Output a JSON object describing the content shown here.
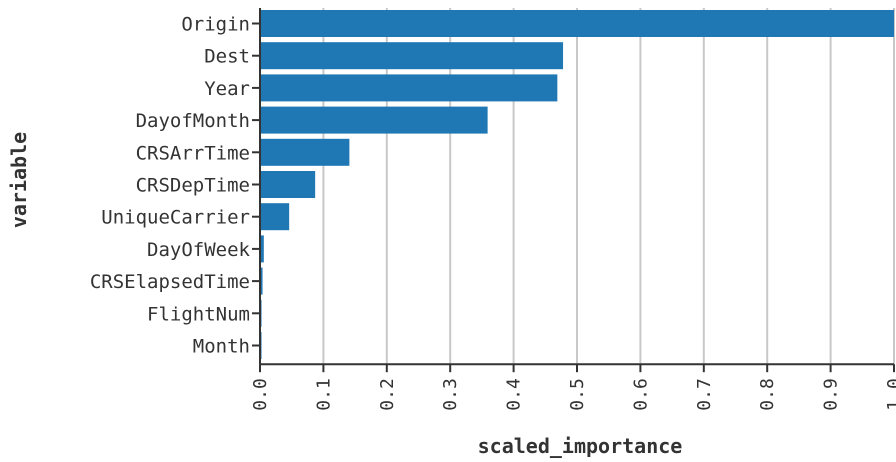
{
  "chart_data": {
    "type": "bar",
    "orientation": "horizontal",
    "xlabel": "scaled_importance",
    "ylabel": "variable",
    "xlim": [
      0,
      1.0
    ],
    "x_ticks": [
      "0.0",
      "0.1",
      "0.2",
      "0.3",
      "0.4",
      "0.5",
      "0.6",
      "0.7",
      "0.8",
      "0.9",
      "1.0"
    ],
    "grid": true,
    "bar_color": "#1f77b4",
    "categories": [
      "Origin",
      "Dest",
      "Year",
      "DayofMonth",
      "CRSArrTime",
      "CRSDepTime",
      "UniqueCarrier",
      "DayOfWeek",
      "CRSElapsedTime",
      "FlightNum",
      "Month"
    ],
    "values": [
      1.0,
      0.478,
      0.469,
      0.359,
      0.141,
      0.087,
      0.046,
      0.006,
      0.004,
      0.001,
      0.001
    ]
  }
}
